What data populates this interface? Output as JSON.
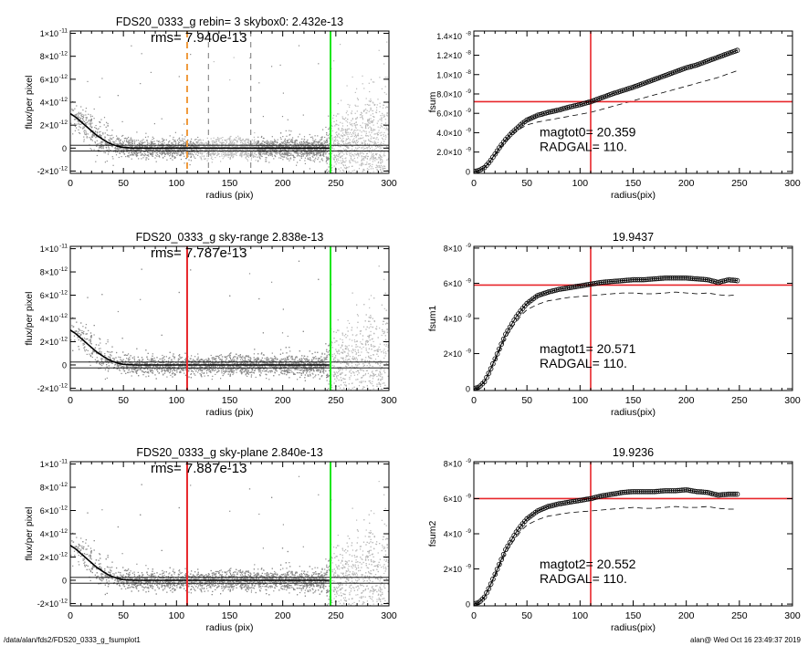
{
  "footer": {
    "left": "/data/alan/fds2/FDS20_0333_g_fsumplot1",
    "right": "alan@  Wed Oct 16 23:49:37 2019"
  },
  "colors": {
    "red": "#e8262b",
    "green": "#19e619",
    "orange": "#f09a3c",
    "points": "#8a8a8a",
    "points_light": "#b8b8b8"
  },
  "chart_data": [
    {
      "id": "flux-1",
      "type": "scatter",
      "title": "FDS20_0333_g rebin= 3    skybox0:  2.432e-13",
      "rms": "rms= 7.940e-13",
      "xlabel": "radius (pix)",
      "ylabel": "flux/per pixel",
      "xlim": [
        0,
        300
      ],
      "ylim": [
        -2.2e-12,
        1.02e-11
      ],
      "xticks": [
        "0",
        "50",
        "100",
        "150",
        "200",
        "250",
        "300"
      ],
      "yticks": [
        {
          "v": -2e-12,
          "label": "-2×10",
          "exp": "-12"
        },
        {
          "v": 0,
          "label": "0",
          "exp": ""
        },
        {
          "v": 2e-12,
          "label": "2×10",
          "exp": "-12"
        },
        {
          "v": 4e-12,
          "label": "4×10",
          "exp": "-12"
        },
        {
          "v": 6e-12,
          "label": "6×10",
          "exp": "-12"
        },
        {
          "v": 8e-12,
          "label": "8×10",
          "exp": "-12"
        },
        {
          "v": 1e-11,
          "label": "1×10",
          "exp": "-11"
        }
      ],
      "hlines": [
        2.5e-13,
        -2.5e-13
      ],
      "vline_main": {
        "x": 110,
        "color": "orange",
        "dashed": true
      },
      "vline_green": 245,
      "vline_dashed": [
        130,
        170
      ],
      "profile_x": [
        0,
        5,
        10,
        15,
        20,
        25,
        30,
        35,
        40,
        45,
        50,
        60,
        80,
        100,
        150,
        200,
        245
      ],
      "profile_y": [
        3e-12,
        2.7e-12,
        2.3e-12,
        1.9e-12,
        1.5e-12,
        1.1e-12,
        8e-13,
        5e-13,
        3e-13,
        1.5e-13,
        5e-14,
        0,
        0,
        0,
        0,
        0,
        0
      ]
    },
    {
      "id": "fsum-1",
      "type": "line",
      "title": "",
      "xlabel": "radius(pix)",
      "ylabel": "fsum",
      "xlim": [
        0,
        300
      ],
      "ylim": [
        -2e-10,
        1.45e-08
      ],
      "xticks": [
        "0",
        "50",
        "100",
        "150",
        "200",
        "250",
        "300"
      ],
      "yticks": [
        {
          "v": 0,
          "label": "0",
          "exp": ""
        },
        {
          "v": 2e-09,
          "label": "2.0×10",
          "exp": "-9"
        },
        {
          "v": 4e-09,
          "label": "4.0×10",
          "exp": "-9"
        },
        {
          "v": 6e-09,
          "label": "6.0×10",
          "exp": "-9"
        },
        {
          "v": 8e-09,
          "label": "8.0×10",
          "exp": "-9"
        },
        {
          "v": 1e-08,
          "label": "1.0×10",
          "exp": "-8"
        },
        {
          "v": 1.2e-08,
          "label": "1.2×10",
          "exp": "-8"
        },
        {
          "v": 1.4e-08,
          "label": "1.4×10",
          "exp": "-8"
        }
      ],
      "vline": 110,
      "hline": 7.2e-09,
      "mag_label": "magtot0=  20.359",
      "rad_label": "RADGAL=    110.",
      "curve_x": [
        0,
        5,
        10,
        15,
        20,
        25,
        30,
        35,
        40,
        45,
        50,
        60,
        70,
        80,
        90,
        100,
        110,
        120,
        130,
        140,
        150,
        160,
        170,
        180,
        190,
        200,
        210,
        220,
        230,
        240,
        248
      ],
      "curve_y": [
        0,
        1e-10,
        4e-10,
        1e-09,
        1.8e-09,
        2.6e-09,
        3.3e-09,
        3.9e-09,
        4.4e-09,
        4.9e-09,
        5.3e-09,
        5.8e-09,
        6.1e-09,
        6.35e-09,
        6.65e-09,
        6.9e-09,
        7.2e-09,
        7.6e-09,
        8e-09,
        8.35e-09,
        8.7e-09,
        9.1e-09,
        9.5e-09,
        9.9e-09,
        1.03e-08,
        1.07e-08,
        1.1e-08,
        1.14e-08,
        1.18e-08,
        1.22e-08,
        1.25e-08
      ],
      "dash_y": [
        0,
        1e-10,
        4e-10,
        1e-09,
        1.7e-09,
        2.4e-09,
        3.1e-09,
        3.6e-09,
        4.1e-09,
        4.5e-09,
        4.8e-09,
        5.1e-09,
        5.3e-09,
        5.5e-09,
        5.7e-09,
        5.9e-09,
        6.1e-09,
        6.4e-09,
        6.7e-09,
        7e-09,
        7.3e-09,
        7.6e-09,
        7.9e-09,
        8.2e-09,
        8.5e-09,
        8.8e-09,
        9.1e-09,
        9.4e-09,
        9.7e-09,
        1.01e-08,
        1.04e-08
      ]
    },
    {
      "id": "flux-2",
      "type": "scatter",
      "title": "FDS20_0333_g sky-range  2.838e-13",
      "rms": "rms= 7.787e-13",
      "xlabel": "radius (pix)",
      "ylabel": "flux/per pixel",
      "xlim": [
        0,
        300
      ],
      "ylim": [
        -2.2e-12,
        1.02e-11
      ],
      "xticks": [
        "0",
        "50",
        "100",
        "150",
        "200",
        "250",
        "300"
      ],
      "yticks": [
        {
          "v": -2e-12,
          "label": "-2×10",
          "exp": "-12"
        },
        {
          "v": 0,
          "label": "0",
          "exp": ""
        },
        {
          "v": 2e-12,
          "label": "2×10",
          "exp": "-12"
        },
        {
          "v": 4e-12,
          "label": "4×10",
          "exp": "-12"
        },
        {
          "v": 6e-12,
          "label": "6×10",
          "exp": "-12"
        },
        {
          "v": 8e-12,
          "label": "8×10",
          "exp": "-12"
        },
        {
          "v": 1e-11,
          "label": "1×10",
          "exp": "-11"
        }
      ],
      "hlines": [
        2.5e-13,
        -2.5e-13
      ],
      "vline_main": {
        "x": 110,
        "color": "red",
        "dashed": false
      },
      "vline_green": 245,
      "vline_dashed": [],
      "profile_x": [
        0,
        5,
        10,
        15,
        20,
        25,
        30,
        35,
        40,
        45,
        50,
        60,
        80,
        100,
        150,
        200,
        245
      ],
      "profile_y": [
        3e-12,
        2.7e-12,
        2.3e-12,
        1.9e-12,
        1.5e-12,
        1.1e-12,
        8e-13,
        5e-13,
        3e-13,
        1.5e-13,
        5e-14,
        0,
        0,
        0,
        0,
        0,
        0
      ]
    },
    {
      "id": "fsum-2",
      "type": "line",
      "title": "19.9437",
      "xlabel": "radius(pix)",
      "ylabel": "fsum1",
      "xlim": [
        0,
        300
      ],
      "ylim": [
        -1e-10,
        8.1e-09
      ],
      "xticks": [
        "0",
        "50",
        "100",
        "150",
        "200",
        "250",
        "300"
      ],
      "yticks": [
        {
          "v": 0,
          "label": "0",
          "exp": ""
        },
        {
          "v": 2e-09,
          "label": "2×10",
          "exp": "-9"
        },
        {
          "v": 4e-09,
          "label": "4×10",
          "exp": "-9"
        },
        {
          "v": 6e-09,
          "label": "6×10",
          "exp": "-9"
        },
        {
          "v": 8e-09,
          "label": "8×10",
          "exp": "-9"
        }
      ],
      "vline": 110,
      "hline": 5.9e-09,
      "mag_label": "magtot1=  20.571",
      "rad_label": "RADGAL=    110.",
      "curve_x": [
        0,
        5,
        10,
        15,
        20,
        25,
        30,
        35,
        40,
        45,
        50,
        60,
        70,
        80,
        90,
        100,
        110,
        120,
        130,
        140,
        150,
        160,
        170,
        180,
        190,
        200,
        210,
        220,
        230,
        240,
        248
      ],
      "curve_y": [
        0,
        1e-10,
        4e-10,
        1e-09,
        1.7e-09,
        2.4e-09,
        3.1e-09,
        3.6e-09,
        4.1e-09,
        4.5e-09,
        4.85e-09,
        5.3e-09,
        5.5e-09,
        5.65e-09,
        5.75e-09,
        5.85e-09,
        5.95e-09,
        6.05e-09,
        6.1e-09,
        6.15e-09,
        6.2e-09,
        6.2e-09,
        6.25e-09,
        6.3e-09,
        6.3e-09,
        6.3e-09,
        6.25e-09,
        6.2e-09,
        6.05e-09,
        6.2e-09,
        6.15e-09
      ],
      "dash_y": [
        0,
        1e-10,
        4e-10,
        1e-09,
        1.6e-09,
        2.3e-09,
        2.9e-09,
        3.4e-09,
        3.8e-09,
        4.2e-09,
        4.5e-09,
        4.8e-09,
        5e-09,
        5.1e-09,
        5.2e-09,
        5.25e-09,
        5.3e-09,
        5.35e-09,
        5.4e-09,
        5.45e-09,
        5.45e-09,
        5.4e-09,
        5.4e-09,
        5.45e-09,
        5.5e-09,
        5.45e-09,
        5.4e-09,
        5.45e-09,
        5.35e-09,
        5.3e-09,
        5.35e-09
      ]
    },
    {
      "id": "flux-3",
      "type": "scatter",
      "title": "FDS20_0333_g sky-plane  2.840e-13",
      "rms": "rms= 7.887e-13",
      "xlabel": "radius (pix)",
      "ylabel": "flux/per pixel",
      "xlim": [
        0,
        300
      ],
      "ylim": [
        -2.2e-12,
        1.02e-11
      ],
      "xticks": [
        "0",
        "50",
        "100",
        "150",
        "200",
        "250",
        "300"
      ],
      "yticks": [
        {
          "v": -2e-12,
          "label": "-2×10",
          "exp": "-12"
        },
        {
          "v": 0,
          "label": "0",
          "exp": ""
        },
        {
          "v": 2e-12,
          "label": "2×10",
          "exp": "-12"
        },
        {
          "v": 4e-12,
          "label": "4×10",
          "exp": "-12"
        },
        {
          "v": 6e-12,
          "label": "6×10",
          "exp": "-12"
        },
        {
          "v": 8e-12,
          "label": "8×10",
          "exp": "-12"
        },
        {
          "v": 1e-11,
          "label": "1×10",
          "exp": "-11"
        }
      ],
      "hlines": [
        2.5e-13,
        -2.5e-13
      ],
      "vline_main": {
        "x": 110,
        "color": "red",
        "dashed": false
      },
      "vline_green": 245,
      "vline_dashed": [],
      "profile_x": [
        0,
        5,
        10,
        15,
        20,
        25,
        30,
        35,
        40,
        45,
        50,
        60,
        80,
        100,
        150,
        200,
        245
      ],
      "profile_y": [
        3e-12,
        2.7e-12,
        2.3e-12,
        1.9e-12,
        1.5e-12,
        1.1e-12,
        8e-13,
        5e-13,
        3e-13,
        1.5e-13,
        5e-14,
        0,
        0,
        0,
        0,
        0,
        0
      ]
    },
    {
      "id": "fsum-3",
      "type": "line",
      "title": "19.9236",
      "xlabel": "radius(pix)",
      "ylabel": "fsum2",
      "xlim": [
        0,
        300
      ],
      "ylim": [
        -1e-10,
        8.1e-09
      ],
      "xticks": [
        "0",
        "50",
        "100",
        "150",
        "200",
        "250",
        "300"
      ],
      "yticks": [
        {
          "v": 0,
          "label": "0",
          "exp": ""
        },
        {
          "v": 2e-09,
          "label": "2×10",
          "exp": "-9"
        },
        {
          "v": 4e-09,
          "label": "4×10",
          "exp": "-9"
        },
        {
          "v": 6e-09,
          "label": "6×10",
          "exp": "-9"
        },
        {
          "v": 8e-09,
          "label": "8×10",
          "exp": "-9"
        }
      ],
      "vline": 110,
      "hline": 6e-09,
      "mag_label": "magtot2=  20.552",
      "rad_label": "RADGAL=    110.",
      "curve_x": [
        0,
        5,
        10,
        15,
        20,
        25,
        30,
        35,
        40,
        45,
        50,
        60,
        70,
        80,
        90,
        100,
        110,
        120,
        130,
        140,
        150,
        160,
        170,
        180,
        190,
        200,
        210,
        220,
        230,
        240,
        248
      ],
      "curve_y": [
        0,
        1e-10,
        4e-10,
        1e-09,
        1.7e-09,
        2.4e-09,
        3.1e-09,
        3.6e-09,
        4.1e-09,
        4.5e-09,
        4.85e-09,
        5.3e-09,
        5.55e-09,
        5.7e-09,
        5.8e-09,
        5.9e-09,
        6e-09,
        6.15e-09,
        6.25e-09,
        6.35e-09,
        6.4e-09,
        6.4e-09,
        6.4e-09,
        6.45e-09,
        6.45e-09,
        6.5e-09,
        6.4e-09,
        6.35e-09,
        6.2e-09,
        6.25e-09,
        6.25e-09
      ],
      "dash_y": [
        0,
        1e-10,
        4e-10,
        1e-09,
        1.6e-09,
        2.3e-09,
        2.9e-09,
        3.4e-09,
        3.8e-09,
        4.2e-09,
        4.5e-09,
        4.8e-09,
        5e-09,
        5.1e-09,
        5.2e-09,
        5.25e-09,
        5.3e-09,
        5.35e-09,
        5.4e-09,
        5.45e-09,
        5.5e-09,
        5.45e-09,
        5.45e-09,
        5.5e-09,
        5.55e-09,
        5.5e-09,
        5.5e-09,
        5.55e-09,
        5.45e-09,
        5.4e-09,
        5.4e-09
      ]
    }
  ]
}
